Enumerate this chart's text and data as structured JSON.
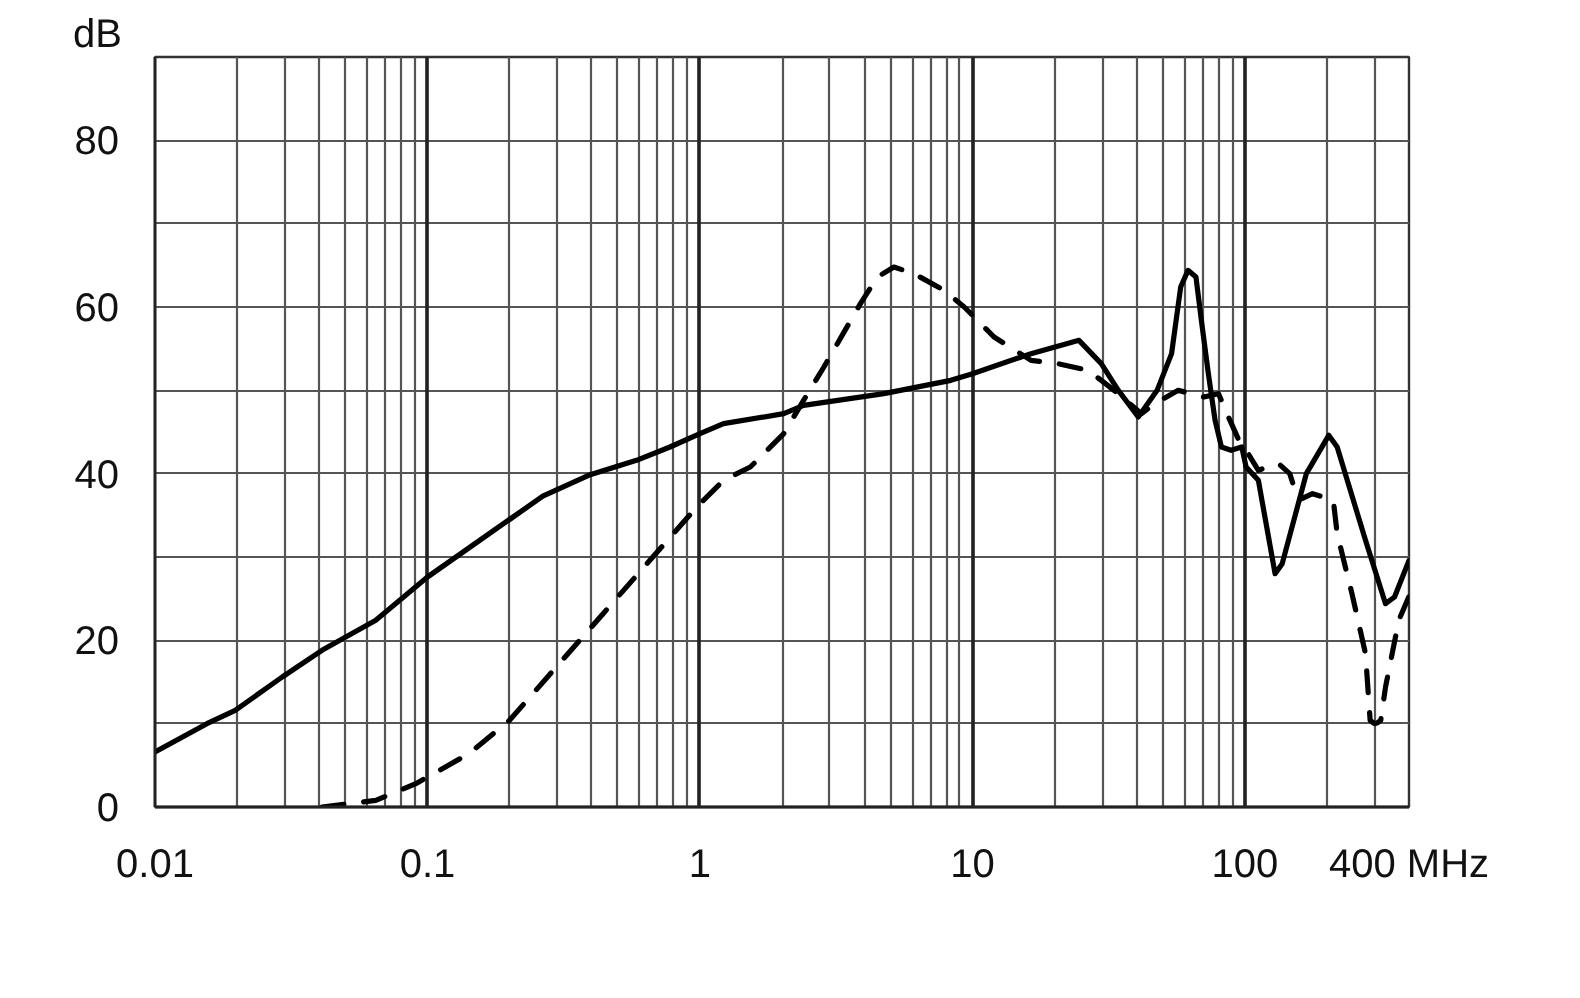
{
  "chart_data": {
    "type": "line",
    "ylabel": "dB",
    "log": "x",
    "grid": true,
    "xlim": [
      0.01,
      400
    ],
    "ylim": [
      0,
      90
    ],
    "xticks": [
      0.01,
      {
        "value": 0.02,
        "label": null
      },
      {
        "value": 0.03,
        "label": null
      },
      {
        "value": 0.04,
        "label": null
      },
      {
        "value": 0.05,
        "label": null
      },
      {
        "value": 0.06,
        "label": null
      },
      {
        "value": 0.07,
        "label": null
      },
      {
        "value": 0.08,
        "label": null
      },
      {
        "value": 0.09,
        "label": null
      },
      0.1,
      {
        "value": 0.2,
        "label": null
      },
      {
        "value": 0.3,
        "label": null
      },
      {
        "value": 0.4,
        "label": null
      },
      {
        "value": 0.5,
        "label": null
      },
      {
        "value": 0.6,
        "label": null
      },
      {
        "value": 0.7,
        "label": null
      },
      {
        "value": 0.8,
        "label": null
      },
      {
        "value": 0.9,
        "label": null
      },
      1,
      {
        "value": 2,
        "label": null
      },
      {
        "value": 3,
        "label": null
      },
      {
        "value": 4,
        "label": null
      },
      {
        "value": 5,
        "label": null
      },
      {
        "value": 6,
        "label": null
      },
      {
        "value": 7,
        "label": null
      },
      {
        "value": 8,
        "label": null
      },
      {
        "value": 9,
        "label": null
      },
      10,
      {
        "value": 20,
        "label": null
      },
      {
        "value": 30,
        "label": null
      },
      {
        "value": 40,
        "label": null
      },
      {
        "value": 50,
        "label": null
      },
      {
        "value": 60,
        "label": null
      },
      {
        "value": 70,
        "label": null
      },
      {
        "value": 80,
        "label": null
      },
      {
        "value": 90,
        "label": null
      },
      100,
      {
        "value": 200,
        "label": null
      },
      {
        "value": 300,
        "label": null
      },
      {
        "value": 400,
        "label": "400 MHz"
      }
    ],
    "yticks": [
      0,
      {
        "value": 10,
        "label": null
      },
      20,
      {
        "value": 30,
        "label": null
      },
      40,
      {
        "value": 50,
        "label": null
      },
      60,
      {
        "value": 70,
        "label": null
      },
      80
    ],
    "series": [
      {
        "color": "#000000",
        "line_style": "solid",
        "x": [
          0.01,
          0.0155,
          0.0197,
          0.0293,
          0.041,
          0.0646,
          0.1,
          0.2,
          0.265,
          0.39,
          0.585,
          0.776,
          1,
          1.22,
          2.03,
          2.4,
          4.73,
          8.33,
          10,
          16.4,
          24.6,
          29.7,
          34.3,
          40.6,
          47.6,
          53.8,
          58.1,
          61.8,
          66.1,
          69.2,
          73.4,
          77.7,
          82,
          89,
          97.3,
          101,
          112,
          129,
          137,
          168,
          203,
          218,
          277,
          328,
          354,
          400
        ],
        "values": [
          6.6,
          10,
          11.6,
          15.6,
          18.8,
          22.4,
          27.6,
          34.5,
          37.3,
          39.8,
          41.6,
          43.2,
          44.8,
          46,
          47.2,
          48.2,
          49.6,
          51.2,
          52,
          54.4,
          56,
          53.2,
          50,
          46.8,
          50,
          54.4,
          62.4,
          64.4,
          63.6,
          58.4,
          52,
          46.4,
          43.2,
          42.8,
          43.2,
          40.8,
          39.2,
          28,
          29.2,
          40,
          44.6,
          43.2,
          32,
          24.4,
          25.2,
          29.6
        ]
      },
      {
        "color": "#000000",
        "line_style": "dashed",
        "x": [
          0.041,
          0.0646,
          0.0906,
          0.142,
          0.2,
          0.297,
          0.441,
          0.655,
          0.973,
          1.22,
          1.53,
          2.03,
          2.4,
          2.85,
          3.88,
          4.48,
          5.15,
          6.1,
          7.88,
          9.33,
          12,
          16.4,
          20.6,
          26.6,
          34.3,
          41.7,
          46.6,
          56.9,
          70.7,
          80,
          87,
          95,
          101,
          112,
          121,
          133,
          146,
          157,
          177,
          211,
          218,
          247,
          277,
          288,
          296,
          300,
          306,
          315,
          328,
          367,
          399
        ],
        "values": [
          0,
          0.8,
          2.8,
          6.4,
          10.4,
          16.8,
          23.2,
          29.6,
          36,
          39.2,
          40.8,
          44.8,
          48.8,
          52.8,
          60.4,
          63.6,
          64.8,
          64,
          62,
          60,
          56.4,
          53.6,
          53.2,
          52.4,
          49.6,
          47.2,
          48.4,
          50,
          49.2,
          49.6,
          46.8,
          44,
          42.8,
          40.4,
          40.8,
          41.2,
          40,
          36.8,
          37.6,
          36.8,
          32.8,
          25.6,
          18.4,
          10.4,
          10.1,
          10,
          10.1,
          10.4,
          14.4,
          22.4,
          25.2
        ]
      }
    ]
  }
}
